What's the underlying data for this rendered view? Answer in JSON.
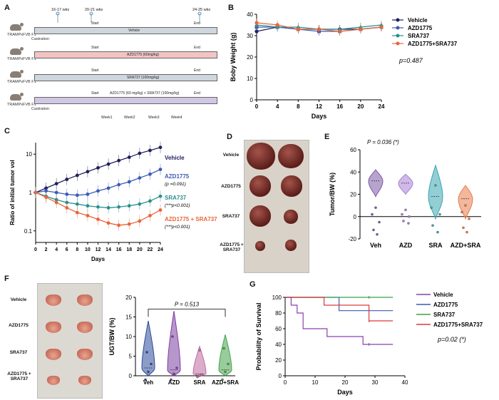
{
  "panels": {
    "A": "A",
    "B": "B",
    "C": "C",
    "D": "D",
    "E": "E",
    "F": "F",
    "G": "G"
  },
  "panelA": {
    "timepoints": [
      "16-17 wks",
      "20-21 wks",
      "24-25 wks"
    ],
    "mouse_label": "TRAMPxFVB F1",
    "castration": "Castration",
    "start": "Start",
    "end": "End",
    "rows": [
      {
        "treatment": "Vehicle",
        "color": "#cfd6dd"
      },
      {
        "treatment": "AZD1775 (60mg/kg)",
        "color": "#f2c4c4"
      },
      {
        "treatment": "SRA737 (100mg/kg)",
        "color": "#cfd6dd"
      },
      {
        "treatment": "AZD1775 (60 mg/kg) + SRA737 (100mg/kg)",
        "color": "#d2c7e3"
      }
    ],
    "weeks": [
      "Week1",
      "Week2",
      "Week3",
      "Week4"
    ]
  },
  "chart_data": [
    {
      "id": "B",
      "type": "line",
      "xlabel": "Days",
      "ylabel": "Boby Weight (g)",
      "x": [
        0,
        4,
        8,
        12,
        16,
        20,
        24
      ],
      "ylim": [
        0,
        40
      ],
      "yticks": [
        0,
        10,
        20,
        30,
        40
      ],
      "series": [
        {
          "name": "Vehicle",
          "color": "#1f1f5c",
          "values": [
            32,
            34,
            33,
            33,
            33,
            33,
            34
          ]
        },
        {
          "name": "AZD1775",
          "color": "#3b5bb5",
          "values": [
            34,
            34,
            33,
            32,
            32,
            33,
            34
          ]
        },
        {
          "name": "SRA737",
          "color": "#2a8f8f",
          "values": [
            35,
            34,
            34,
            33,
            33,
            34,
            35
          ]
        },
        {
          "name": "AZD1775+SRA737",
          "color": "#e8663a",
          "values": [
            36,
            35,
            33,
            33,
            32,
            33,
            34
          ]
        }
      ],
      "annotation": "p=0.487"
    },
    {
      "id": "C",
      "type": "line",
      "xlabel": "Days",
      "ylabel": "Ratio of initial tumor vol",
      "x": [
        0,
        2,
        4,
        6,
        8,
        10,
        12,
        14,
        16,
        18,
        20,
        22,
        24
      ],
      "ylim_log": [
        0.05,
        20
      ],
      "yticks": [
        "0.1",
        "1",
        "10"
      ],
      "series": [
        {
          "name": "Vehicle",
          "color": "#1f1f5c",
          "values": [
            1,
            1.3,
            1.7,
            2.2,
            2.8,
            3.5,
            4.4,
            5.5,
            6.8,
            8.3,
            10.5,
            12.5,
            15
          ]
        },
        {
          "name": "AZD1775",
          "color": "#3b5bb5",
          "values": [
            1,
            1.1,
            1.0,
            0.9,
            0.85,
            0.9,
            1.1,
            1.3,
            1.6,
            1.9,
            2.4,
            3.0,
            4.0
          ]
        },
        {
          "name": "SRA737",
          "color": "#2a8f8f",
          "values": [
            1,
            0.8,
            0.65,
            0.55,
            0.5,
            0.45,
            0.42,
            0.4,
            0.42,
            0.45,
            0.5,
            0.6,
            0.8
          ]
        },
        {
          "name": "AZD1775 + SRA737",
          "color": "#e8663a",
          "values": [
            1,
            0.75,
            0.55,
            0.4,
            0.3,
            0.25,
            0.2,
            0.16,
            0.14,
            0.15,
            0.18,
            0.25,
            0.35
          ]
        }
      ],
      "annotations": [
        "(p =0.091)",
        "(***p<0.001)",
        "(***p<0.001)"
      ]
    },
    {
      "id": "E",
      "type": "violin",
      "ylabel": "Tumor/BW (%)",
      "categories": [
        "Veh",
        "AZD",
        "SRA",
        "AZD+SRA"
      ],
      "colors": [
        "#7b5aa6",
        "#a97fd6",
        "#3aa5b3",
        "#e87c4a"
      ],
      "ylim": [
        -20,
        60
      ],
      "yticks": [
        -20,
        0,
        20,
        40,
        60
      ],
      "medians": [
        32,
        30,
        18,
        16
      ],
      "annotation": "P = 0.036 (*)"
    },
    {
      "id": "F",
      "type": "violin",
      "ylabel": "UGT/BW (%)",
      "categories": [
        "Veh",
        "AZD",
        "SRA",
        "AZD+SRA"
      ],
      "colors": [
        "#2b4a9a",
        "#7b3fa0",
        "#c06aa0",
        "#44a34a"
      ],
      "ylim": [
        0,
        20
      ],
      "yticks": [
        0,
        5,
        10,
        15,
        20
      ],
      "medians": [
        2,
        1.5,
        0.5,
        1.5
      ],
      "annotation": "P = 0.513"
    },
    {
      "id": "G",
      "type": "step",
      "xlabel": "Days",
      "ylabel": "Probability of Survival",
      "xlim": [
        0,
        40
      ],
      "xticks": [
        0,
        10,
        20,
        30,
        40
      ],
      "ylim": [
        0,
        100
      ],
      "yticks": [
        0,
        20,
        40,
        60,
        80,
        100
      ],
      "series": [
        {
          "name": "Vehicle",
          "color": "#8a3fb0",
          "steps": [
            [
              0,
              100
            ],
            [
              2,
              90
            ],
            [
              4,
              80
            ],
            [
              6,
              60
            ],
            [
              14,
              50
            ],
            [
              26,
              40
            ],
            [
              36,
              40
            ]
          ]
        },
        {
          "name": "AZD1775",
          "color": "#3b5bb5",
          "steps": [
            [
              0,
              100
            ],
            [
              18,
              83
            ],
            [
              36,
              83
            ]
          ]
        },
        {
          "name": "SRA737",
          "color": "#3aa04a",
          "steps": [
            [
              0,
              100
            ],
            [
              36,
              100
            ]
          ]
        },
        {
          "name": "AZD1775+SRA737",
          "color": "#d93a3a",
          "steps": [
            [
              0,
              100
            ],
            [
              13,
              90
            ],
            [
              28,
              70
            ],
            [
              36,
              70
            ]
          ]
        }
      ],
      "annotation": "p=0.02 (*)"
    }
  ],
  "panelD": {
    "rows": [
      "Vehicle",
      "AZD1775",
      "SRA737",
      "AZD1775 + SRA737"
    ]
  },
  "panelF_photo": {
    "rows": [
      "Vehicle",
      "AZD1775",
      "SRA737",
      "AZD1775 + SRA737"
    ]
  }
}
